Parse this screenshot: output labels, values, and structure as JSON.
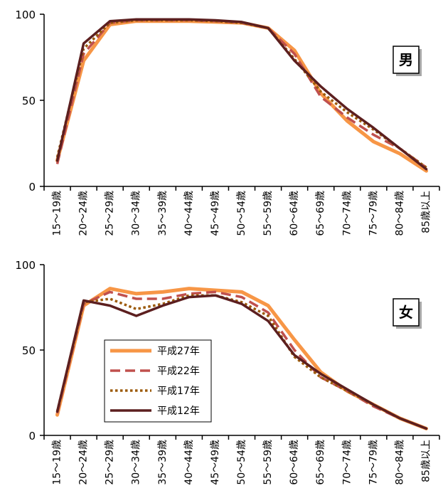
{
  "chart_data": [
    {
      "type": "line",
      "label": "男",
      "categories": [
        "15～19歳",
        "20～24歳",
        "25～29歳",
        "30～34歳",
        "35～39歳",
        "40～44歳",
        "45～49歳",
        "50～54歳",
        "55～59歳",
        "60～64歳",
        "65～69歳",
        "70～74歳",
        "75～79歳",
        "80～84歳",
        "85歳以上"
      ],
      "ylim": [
        0,
        100
      ],
      "yticks": [
        "0",
        "50",
        "100"
      ],
      "grid": false,
      "series": [
        {
          "name": "平成27年",
          "color": "#f79646",
          "dash": "solid",
          "values": [
            15,
            73,
            94,
            96,
            96,
            96,
            95.5,
            95,
            92,
            79,
            54,
            38,
            26,
            19,
            9
          ]
        },
        {
          "name": "平成22年",
          "color": "#c0504d",
          "dash": "dashed",
          "values": [
            13,
            77,
            95,
            96.5,
            96.5,
            96.5,
            96,
            95,
            92,
            77,
            52,
            40,
            30,
            22,
            11
          ]
        },
        {
          "name": "平成17年",
          "color": "#9c5a0a",
          "dash": "dotted",
          "values": [
            17,
            80,
            95,
            96.5,
            96.5,
            96.5,
            96,
            95,
            92,
            74,
            55,
            43,
            33,
            22,
            11
          ]
        },
        {
          "name": "平成12年",
          "color": "#5c1f1f",
          "dash": "solid",
          "values": [
            15,
            83,
            96,
            97,
            97,
            97,
            96.5,
            95.5,
            92,
            73,
            58,
            45,
            34,
            22,
            10
          ]
        }
      ]
    },
    {
      "type": "line",
      "label": "女",
      "categories": [
        "15～19歳",
        "20～24歳",
        "25～29歳",
        "30～34歳",
        "35～39歳",
        "40～44歳",
        "45～49歳",
        "50～54歳",
        "55～59歳",
        "60～64歳",
        "65～69歳",
        "70～74歳",
        "75～79歳",
        "80～84歳",
        "85歳以上"
      ],
      "ylim": [
        0,
        100
      ],
      "yticks": [
        "0",
        "50",
        "100"
      ],
      "grid": false,
      "legend_position": "lower-left",
      "series": [
        {
          "name": "平成27年",
          "color": "#f79646",
          "dash": "solid",
          "values": [
            12,
            76,
            86,
            83,
            84,
            86,
            85,
            84,
            76,
            56,
            37,
            26,
            18,
            10,
            4
          ]
        },
        {
          "name": "平成22年",
          "color": "#c0504d",
          "dash": "dashed",
          "values": [
            13,
            77,
            84,
            80,
            80,
            83,
            84,
            81,
            72,
            50,
            34,
            26,
            17,
            10,
            4
          ]
        },
        {
          "name": "平成17年",
          "color": "#9c5a0a",
          "dash": "dotted",
          "values": [
            14,
            78,
            80,
            74,
            77,
            82,
            82,
            78,
            70,
            46,
            34,
            26,
            18,
            10,
            4
          ]
        },
        {
          "name": "平成12年",
          "color": "#5c1f1f",
          "dash": "solid",
          "values": [
            14,
            79,
            76,
            70,
            76,
            81,
            82,
            77,
            67,
            47,
            36,
            27,
            18,
            10,
            4
          ]
        }
      ]
    }
  ]
}
